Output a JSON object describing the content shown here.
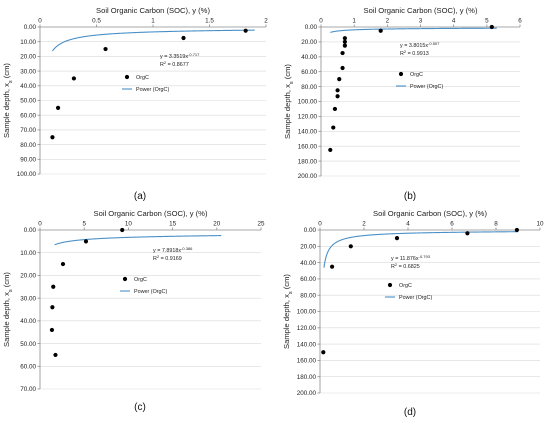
{
  "colors": {
    "series": "#000000",
    "fit": "#4a90c8",
    "grid": "#d9d9d9",
    "axis": "#8c8c8c"
  },
  "chart_data": [
    {
      "type": "scatter",
      "panel_label": "(a)",
      "xlabel": "Soil Organic Carbon (SOC),  y (%)",
      "ylabel": "Sample depth, x",
      "ylabel_sub": "s",
      "ylabel_unit": " (cm)",
      "xlim": [
        0,
        2
      ],
      "x_step": 0.5,
      "ylim": [
        0,
        100
      ],
      "y_step": 10,
      "y_decimals": 2,
      "x_tick_labels": [
        "0",
        "0.5",
        "1",
        "1.5",
        "2"
      ],
      "y_inverted": true,
      "x_axis_position": "top",
      "grid": true,
      "points": [
        [
          1.82,
          2.5
        ],
        [
          1.27,
          7.5
        ],
        [
          0.58,
          15
        ],
        [
          0.3,
          35
        ],
        [
          0.16,
          55
        ],
        [
          0.11,
          75
        ]
      ],
      "fit": {
        "type": "power",
        "a": 3.3519,
        "b": -0.717,
        "r2": 0.8677,
        "x_range": [
          0.11,
          1.9
        ]
      },
      "equation_text": "y = 3.3519x",
      "equation_exp": "-0.717",
      "r2_text": "R",
      "r2_value": " = 0.8677",
      "legend": {
        "position": "center-right",
        "entries": [
          "OrgC",
          "Power (OrgC)"
        ]
      }
    },
    {
      "type": "scatter",
      "panel_label": "(b)",
      "xlabel": "Soil Organic Carbon (SOC),  y (%)",
      "ylabel": "Sample depth, x",
      "ylabel_sub": "s",
      "ylabel_unit": " (cm)",
      "xlim": [
        0,
        6
      ],
      "x_step": 1,
      "ylim": [
        0,
        200
      ],
      "y_step": 20,
      "y_decimals": 2,
      "x_tick_labels": [
        "0",
        "1",
        "2",
        "3",
        "4",
        "5",
        "6"
      ],
      "y_inverted": true,
      "x_axis_position": "top",
      "grid": true,
      "points": [
        [
          5.15,
          0
        ],
        [
          1.8,
          5
        ],
        [
          0.72,
          15
        ],
        [
          0.72,
          20
        ],
        [
          0.72,
          25
        ],
        [
          0.65,
          35
        ],
        [
          0.65,
          55
        ],
        [
          0.55,
          70
        ],
        [
          0.5,
          85
        ],
        [
          0.5,
          93
        ],
        [
          0.42,
          110
        ],
        [
          0.37,
          135
        ],
        [
          0.28,
          165
        ]
      ],
      "fit": {
        "type": "power",
        "a": 3.8015,
        "b": -0.507,
        "r2": 0.9913,
        "x_range": [
          0.28,
          5.3
        ]
      },
      "equation_text": "y = 3.8015x",
      "equation_exp": "-0.507",
      "r2_text": "R",
      "r2_value": " = 0.9913",
      "legend": {
        "position": "center-right",
        "entries": [
          "OrgC",
          "Power (OrgC)"
        ]
      }
    },
    {
      "type": "scatter",
      "panel_label": "(c)",
      "xlabel": "Soil Organic Carbon (SOC),  y (%)",
      "ylabel": "Sample depth, x",
      "ylabel_sub": "s",
      "ylabel_unit": " (cm)",
      "xlim": [
        0,
        25
      ],
      "x_step": 5,
      "ylim": [
        0,
        70
      ],
      "y_step": 10,
      "y_decimals": 2,
      "x_tick_labels": [
        "0",
        "5",
        "10",
        "15",
        "20",
        "25"
      ],
      "y_inverted": true,
      "x_axis_position": "top",
      "grid": true,
      "points": [
        [
          9.3,
          0
        ],
        [
          5.2,
          5
        ],
        [
          2.6,
          15
        ],
        [
          1.5,
          25
        ],
        [
          1.4,
          34
        ],
        [
          1.35,
          44
        ],
        [
          1.75,
          55
        ]
      ],
      "fit": {
        "type": "power",
        "a": 7.8918,
        "b": -0.386,
        "r2": 0.9169,
        "x_range": [
          1.65,
          20.5
        ]
      },
      "equation_text": "y = 7.8918x",
      "equation_exp": "-0.386",
      "r2_text": "R",
      "r2_value": " = 0.9169",
      "legend": {
        "position": "center-right",
        "entries": [
          "OrgC",
          "Power (OrgC)"
        ]
      }
    },
    {
      "type": "scatter",
      "panel_label": "(d)",
      "xlabel": "Soil Organic Carbon (SOC),  y (%)",
      "ylabel": "Sample depth, x",
      "ylabel_sub": "s",
      "ylabel_unit": " (cm)",
      "xlim": [
        0,
        10
      ],
      "x_step": 2,
      "ylim": [
        0,
        200
      ],
      "y_step": 20,
      "y_decimals": 2,
      "x_tick_labels": [
        "0",
        "2",
        "4",
        "6",
        "8",
        "10"
      ],
      "y_inverted": true,
      "x_axis_position": "top",
      "grid": true,
      "points": [
        [
          8.95,
          0
        ],
        [
          6.7,
          4
        ],
        [
          3.5,
          10
        ],
        [
          1.4,
          20
        ],
        [
          0.55,
          45
        ],
        [
          0.15,
          150
        ]
      ],
      "fit": {
        "type": "power",
        "a": 11.876,
        "b": -0.793,
        "r2": 0.6825,
        "x_range": [
          0.18,
          9.0
        ]
      },
      "equation_text": "y = 11.876x",
      "equation_exp": "-0.793",
      "r2_text": "R",
      "r2_value": " = 0.6825",
      "legend": {
        "position": "center-right",
        "entries": [
          "OrgC",
          "Power (OrgC)"
        ]
      }
    }
  ]
}
